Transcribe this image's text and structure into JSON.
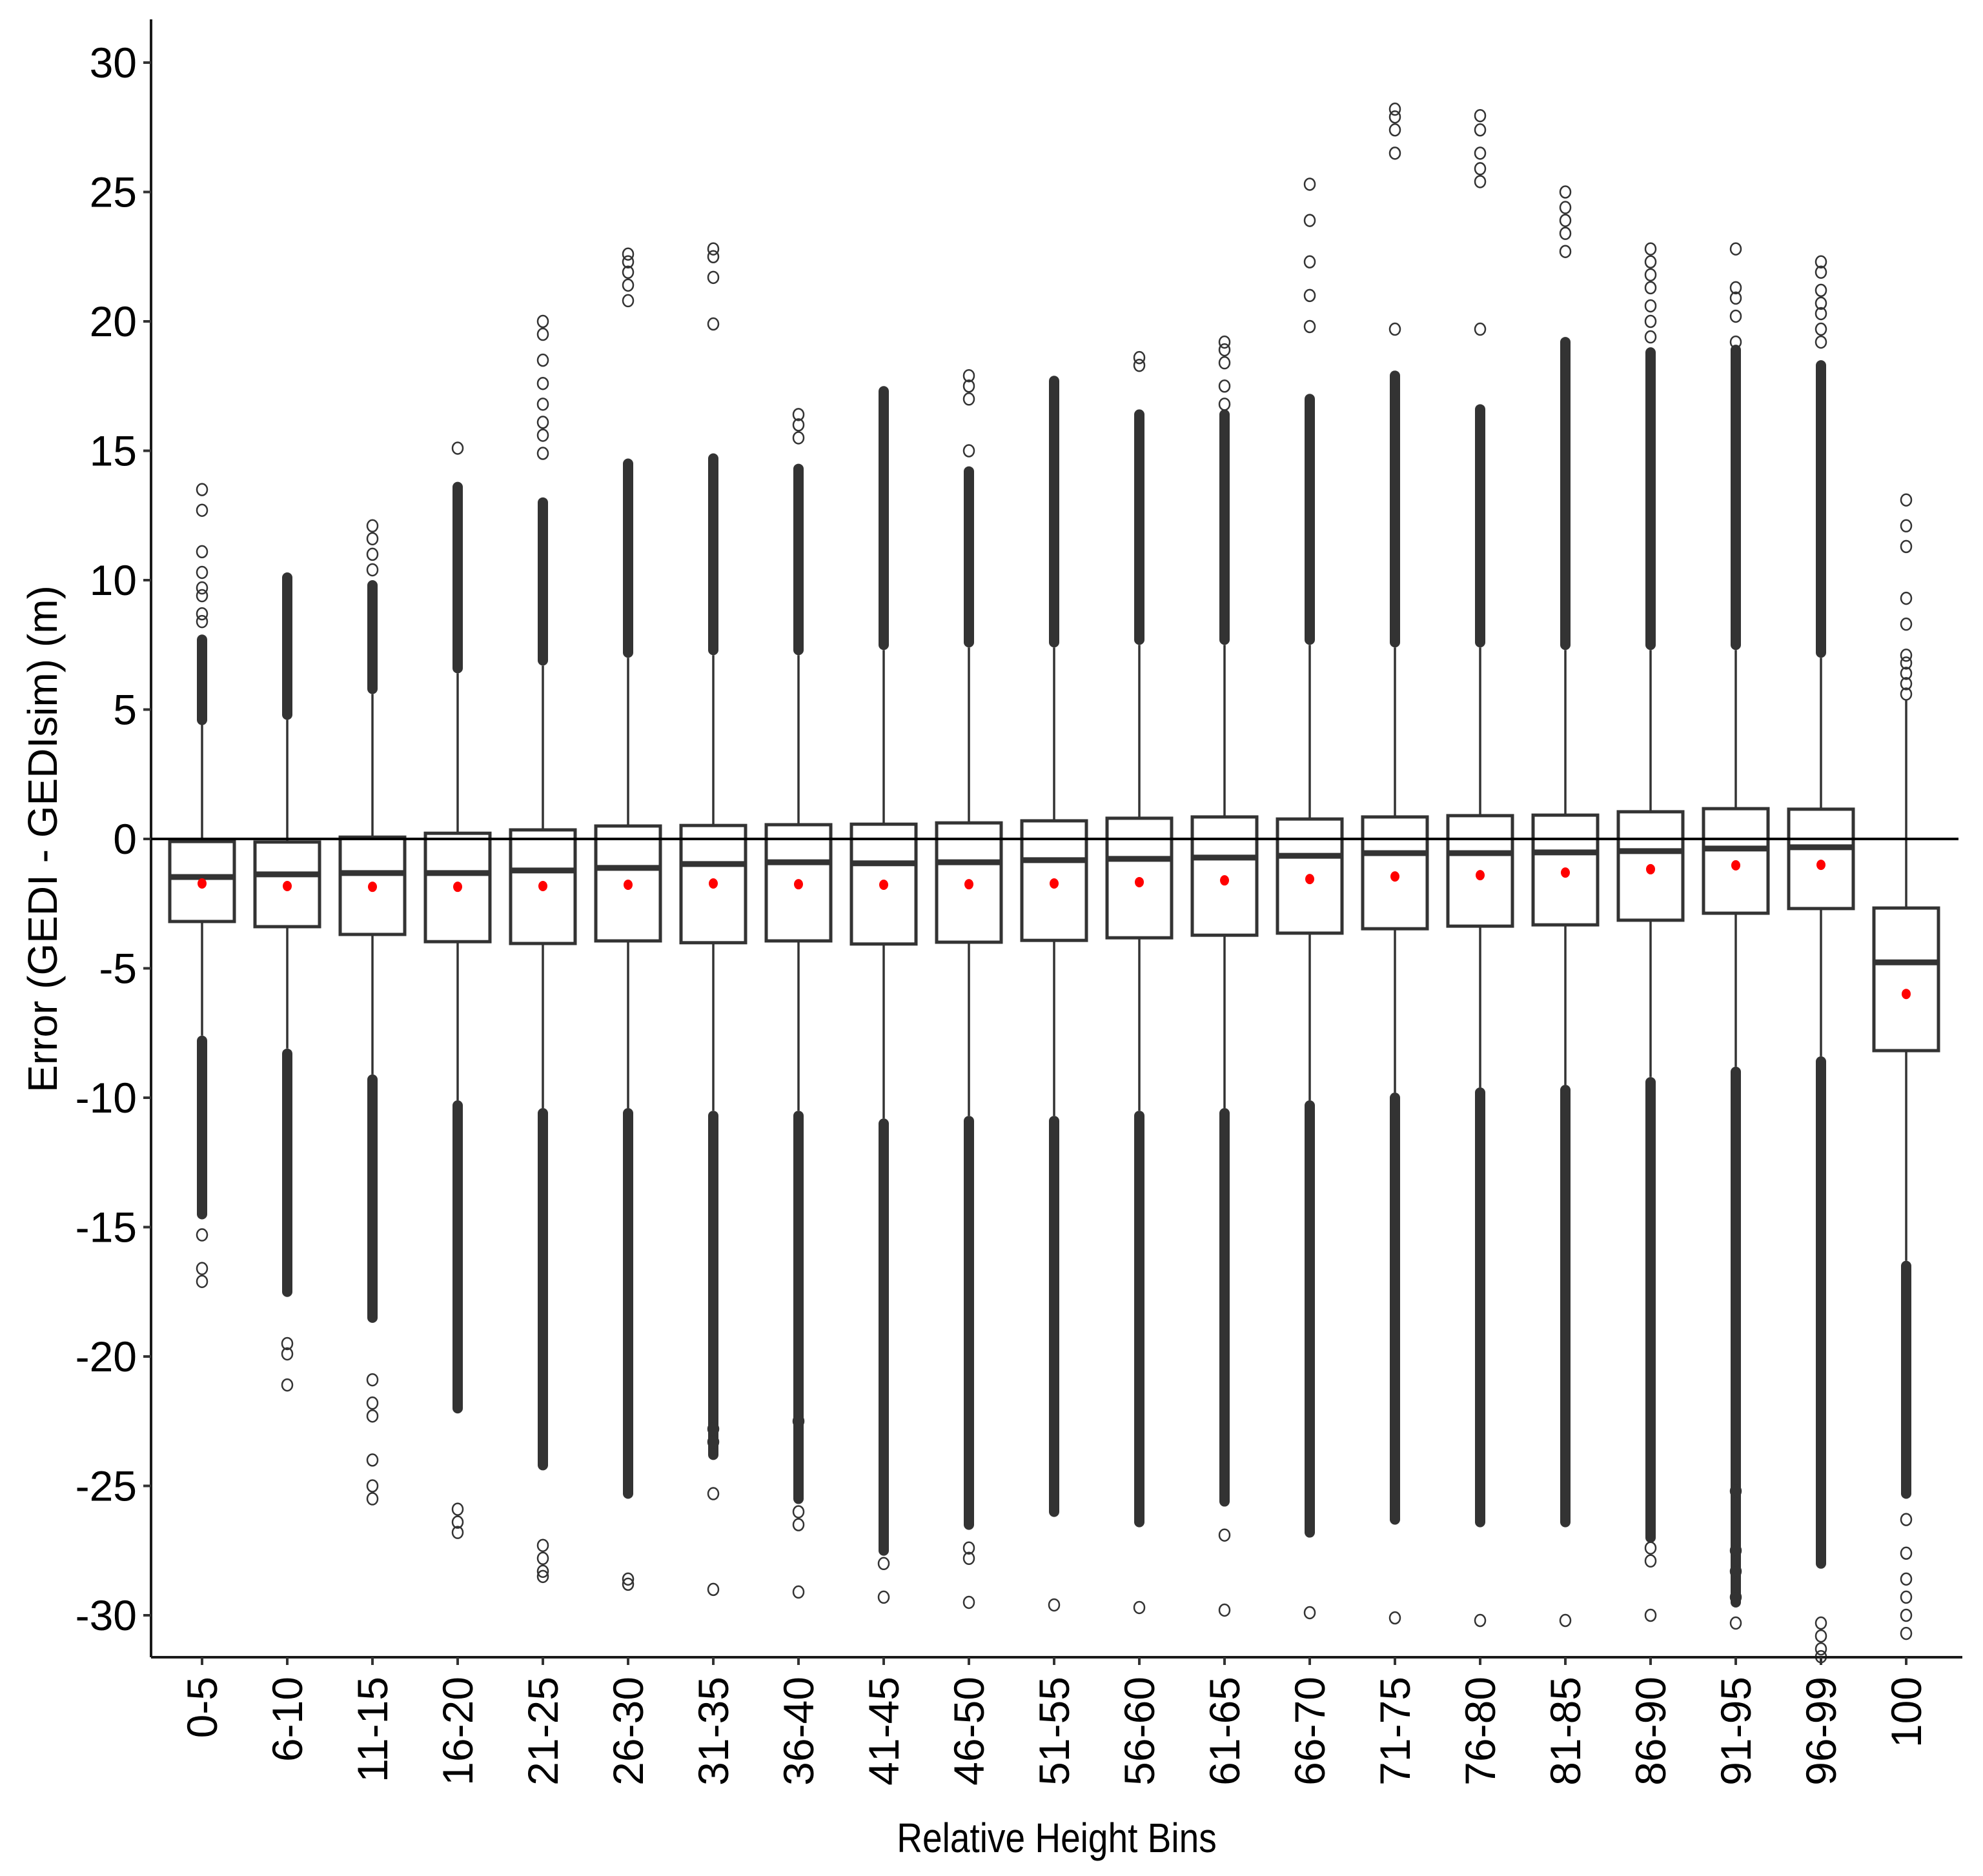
{
  "chart_data": {
    "type": "boxplot",
    "title": "",
    "xlabel": "Relative Height Bins",
    "ylabel": "Error (GEDI - GEDIsim) (m)",
    "ylim": [
      -31.6,
      31.7
    ],
    "yticks": [
      30,
      25,
      20,
      15,
      10,
      5,
      0,
      -5,
      -10,
      -15,
      -20,
      -25,
      -30
    ],
    "ytick_labels": [
      "30",
      "25",
      "20",
      "15",
      "10",
      "5",
      "0",
      "-5",
      "-10",
      "-15",
      "-20",
      "-25",
      "-30"
    ],
    "reference_line": 0,
    "grid": false,
    "legend": null,
    "colors": {
      "box_stroke": "#333333",
      "box_fill": "#ffffff",
      "mean_marker": "#ff0000",
      "outlier": "#333333"
    },
    "categories": [
      "0-5",
      "6-10",
      "11-15",
      "16-20",
      "21-25",
      "26-30",
      "31-35",
      "36-40",
      "41-45",
      "46-50",
      "51-55",
      "56-60",
      "61-65",
      "66-70",
      "71-75",
      "76-80",
      "81-85",
      "86-90",
      "91-95",
      "96-99",
      "100"
    ],
    "series": [
      {
        "name": "0-5",
        "whisker_high": 4.4,
        "q3": -0.1,
        "median": -1.47,
        "mean": -1.72,
        "q1": -3.19,
        "whisker_low": -7.6,
        "outlier_max": 13.5,
        "outlier_min": -17.1
      },
      {
        "name": "6-10",
        "whisker_high": 4.6,
        "q3": -0.12,
        "median": -1.37,
        "mean": -1.82,
        "q1": -3.39,
        "whisker_low": -8.1,
        "outlier_max": 10.1,
        "outlier_min": -21.1
      },
      {
        "name": "11-15",
        "whisker_high": 5.6,
        "q3": 0.07,
        "median": -1.32,
        "mean": -1.85,
        "q1": -3.69,
        "whisker_low": -9.1,
        "outlier_max": 12.1,
        "outlier_min": -25.5
      },
      {
        "name": "16-20",
        "whisker_high": 6.4,
        "q3": 0.22,
        "median": -1.32,
        "mean": -1.85,
        "q1": -3.97,
        "whisker_low": -10.1,
        "outlier_max": 15.1,
        "outlier_min": -26.8
      },
      {
        "name": "21-25",
        "whisker_high": 6.7,
        "q3": 0.35,
        "median": -1.22,
        "mean": -1.82,
        "q1": -4.04,
        "whisker_low": -10.4,
        "outlier_max": 20.0,
        "outlier_min": -28.5
      },
      {
        "name": "26-30",
        "whisker_high": 7.0,
        "q3": 0.5,
        "median": -1.12,
        "mean": -1.77,
        "q1": -3.94,
        "whisker_low": -10.4,
        "outlier_max": 22.6,
        "outlier_min": -28.8
      },
      {
        "name": "31-35",
        "whisker_high": 7.1,
        "q3": 0.52,
        "median": -0.97,
        "mean": -1.72,
        "q1": -4.01,
        "whisker_low": -10.5,
        "outlier_max": 22.8,
        "outlier_min": -29.0
      },
      {
        "name": "36-40",
        "whisker_high": 7.1,
        "q3": 0.55,
        "median": -0.9,
        "mean": -1.75,
        "q1": -3.94,
        "whisker_low": -10.5,
        "outlier_max": 16.4,
        "outlier_min": -29.1
      },
      {
        "name": "41-45",
        "whisker_high": 7.3,
        "q3": 0.57,
        "median": -0.94,
        "mean": -1.77,
        "q1": -4.06,
        "whisker_low": -10.8,
        "outlier_max": 17.3,
        "outlier_min": -29.3
      },
      {
        "name": "46-50",
        "whisker_high": 7.4,
        "q3": 0.62,
        "median": -0.9,
        "mean": -1.75,
        "q1": -3.99,
        "whisker_low": -10.7,
        "outlier_max": 17.9,
        "outlier_min": -29.5
      },
      {
        "name": "51-55",
        "whisker_high": 7.4,
        "q3": 0.7,
        "median": -0.82,
        "mean": -1.72,
        "q1": -3.92,
        "whisker_low": -10.7,
        "outlier_max": 17.7,
        "outlier_min": -29.6
      },
      {
        "name": "56-60",
        "whisker_high": 7.5,
        "q3": 0.8,
        "median": -0.77,
        "mean": -1.67,
        "q1": -3.82,
        "whisker_low": -10.5,
        "outlier_max": 18.6,
        "outlier_min": -29.7
      },
      {
        "name": "61-65",
        "whisker_high": 7.5,
        "q3": 0.85,
        "median": -0.72,
        "mean": -1.6,
        "q1": -3.72,
        "whisker_low": -10.4,
        "outlier_max": 19.2,
        "outlier_min": -29.8
      },
      {
        "name": "66-70",
        "whisker_high": 7.5,
        "q3": 0.77,
        "median": -0.65,
        "mean": -1.55,
        "q1": -3.64,
        "whisker_low": -10.1,
        "outlier_max": 25.3,
        "outlier_min": -29.9
      },
      {
        "name": "71-75",
        "whisker_high": 7.4,
        "q3": 0.85,
        "median": -0.55,
        "mean": -1.45,
        "q1": -3.47,
        "whisker_low": -9.8,
        "outlier_max": 28.2,
        "outlier_min": -30.1
      },
      {
        "name": "76-80",
        "whisker_high": 7.4,
        "q3": 0.9,
        "median": -0.55,
        "mean": -1.4,
        "q1": -3.37,
        "whisker_low": -9.6,
        "outlier_max": 27.95,
        "outlier_min": -30.2
      },
      {
        "name": "81-85",
        "whisker_high": 7.3,
        "q3": 0.92,
        "median": -0.52,
        "mean": -1.3,
        "q1": -3.32,
        "whisker_low": -9.5,
        "outlier_max": 25.0,
        "outlier_min": -30.2
      },
      {
        "name": "86-90",
        "whisker_high": 7.3,
        "q3": 1.05,
        "median": -0.47,
        "mean": -1.17,
        "q1": -3.14,
        "whisker_low": -9.2,
        "outlier_max": 22.8,
        "outlier_min": -30.0
      },
      {
        "name": "91-95",
        "whisker_high": 7.3,
        "q3": 1.17,
        "median": -0.37,
        "mean": -1.02,
        "q1": -2.87,
        "whisker_low": -8.8,
        "outlier_max": 22.8,
        "outlier_min": -30.3
      },
      {
        "name": "96-99",
        "whisker_high": 7.0,
        "q3": 1.15,
        "median": -0.32,
        "mean": -1.0,
        "q1": -2.69,
        "whisker_low": -8.4,
        "outlier_max": 22.3,
        "outlier_min": -31.6
      },
      {
        "name": "100",
        "whisker_high": 5.4,
        "q3": -2.67,
        "median": -4.77,
        "mean": -5.99,
        "q1": -8.18,
        "whisker_low": -16.3,
        "outlier_max": 13.1,
        "outlier_min": -30.7
      }
    ],
    "sparse_outliers_high": {
      "0-5": [
        13.5,
        12.7,
        11.1,
        10.3,
        9.7,
        9.4,
        8.7,
        8.4
      ],
      "6-10": [],
      "11-15": [
        12.1,
        11.6,
        11.0,
        10.4
      ],
      "16-20": [
        15.1
      ],
      "21-25": [
        20.0,
        19.5,
        18.5,
        17.6,
        16.8,
        16.1,
        15.6,
        14.9
      ],
      "26-30": [
        22.6,
        22.3,
        21.9,
        21.4,
        20.8
      ],
      "31-35": [
        22.8,
        22.5,
        21.7,
        19.9
      ],
      "36-40": [
        16.4,
        16.0,
        15.5
      ],
      "41-45": [],
      "46-50": [
        17.9,
        17.5,
        17.0,
        15.0
      ],
      "51-55": [],
      "56-60": [
        18.6,
        18.3
      ],
      "61-65": [
        19.2,
        18.9,
        18.4,
        17.5,
        16.8
      ],
      "66-70": [
        25.3,
        23.9,
        22.3,
        21.0,
        19.8
      ],
      "71-75": [
        28.2,
        27.9,
        27.4,
        26.5,
        19.7
      ],
      "76-80": [
        27.95,
        27.4,
        26.5,
        25.9,
        25.4,
        19.7
      ],
      "81-85": [
        25.0,
        24.4,
        23.9,
        23.4,
        22.7
      ],
      "86-90": [
        22.8,
        22.3,
        21.8,
        21.3,
        20.6,
        20.0,
        19.4
      ],
      "91-95": [
        22.8,
        21.3,
        20.9,
        20.2,
        19.2
      ],
      "96-99": [
        22.3,
        21.9,
        21.2,
        20.7,
        20.3,
        19.7,
        19.2
      ],
      "100": [
        13.1,
        12.1,
        11.3,
        9.3,
        8.3,
        7.1,
        6.8,
        6.4,
        6.0,
        5.6
      ]
    },
    "dense_outliers_high_top": {
      "0-5": 7.7,
      "6-10": 10.1,
      "11-15": 9.8,
      "16-20": 13.6,
      "21-25": 13.0,
      "26-30": 14.5,
      "31-35": 14.7,
      "36-40": 14.3,
      "41-45": 17.3,
      "46-50": 14.2,
      "51-55": 17.7,
      "56-60": 16.4,
      "61-65": 16.4,
      "66-70": 17.0,
      "71-75": 17.9,
      "76-80": 16.6,
      "81-85": 19.2,
      "86-90": 18.8,
      "91-95": 18.9,
      "96-99": 18.3,
      "100": 5.6
    },
    "dense_outliers_low_bottom": {
      "0-5": -14.5,
      "6-10": -17.5,
      "11-15": -18.5,
      "16-20": -22.0,
      "21-25": -24.2,
      "26-30": -25.3,
      "31-35": -23.8,
      "36-40": -25.5,
      "41-45": -27.5,
      "46-50": -26.5,
      "51-55": -26.0,
      "56-60": -26.4,
      "61-65": -25.6,
      "66-70": -26.8,
      "71-75": -26.3,
      "76-80": -26.4,
      "81-85": -26.4,
      "86-90": -27.0,
      "91-95": -29.5,
      "96-99": -28.0,
      "100": -25.3
    },
    "sparse_outliers_low": {
      "0-5": [
        -15.3,
        -16.6,
        -17.1
      ],
      "6-10": [
        -19.5,
        -19.9,
        -21.1
      ],
      "11-15": [
        -20.9,
        -21.8,
        -22.3,
        -24.0,
        -25.0,
        -25.5
      ],
      "16-20": [
        -25.9,
        -26.4,
        -26.8
      ],
      "21-25": [
        -27.3,
        -27.8,
        -28.3,
        -28.5
      ],
      "26-30": [
        -28.6,
        -28.8
      ],
      "31-35": [
        -22.8,
        -23.3,
        -25.3,
        -29.0
      ],
      "36-40": [
        -22.5,
        -26.0,
        -26.5,
        -29.1
      ],
      "41-45": [
        -28.0,
        -29.3
      ],
      "46-50": [
        -27.4,
        -27.8,
        -29.5
      ],
      "51-55": [
        -29.6
      ],
      "56-60": [
        -29.7
      ],
      "61-65": [
        -26.9,
        -29.8
      ],
      "66-70": [
        -29.9
      ],
      "71-75": [
        -30.1
      ],
      "76-80": [
        -30.2
      ],
      "81-85": [
        -30.2
      ],
      "86-90": [
        -27.4,
        -27.9,
        -30.0
      ],
      "91-95": [
        -25.2,
        -27.5,
        -28.3,
        -29.3,
        -30.3
      ],
      "96-99": [
        -30.3,
        -30.8,
        -31.3,
        -31.6
      ],
      "100": [
        -26.3,
        -27.6,
        -28.6,
        -29.3,
        -30.0,
        -30.7
      ]
    }
  }
}
